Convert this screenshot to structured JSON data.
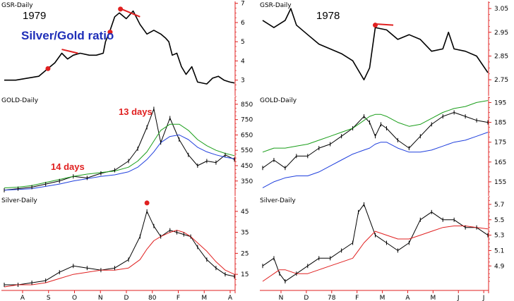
{
  "left": {
    "year_label": "1979",
    "subtitle": "Silver/Gold ratio",
    "annotation_14": "14 days",
    "annotation_13": "13 days",
    "x_ticks": [
      "A",
      "S",
      "O",
      "N",
      "D",
      "80",
      "F",
      "M",
      "A"
    ]
  },
  "right": {
    "year_label": "1978",
    "x_ticks": [
      "N",
      "D",
      "78",
      "F",
      "M",
      "A",
      "M",
      "J",
      "J"
    ]
  },
  "colors": {
    "price": "#000000",
    "short_ma": "#1a9e1a",
    "long_ma": "#1f3fdd",
    "silver_ma": "#e02020",
    "marker": "#e02020",
    "signal": "#1f4fdd",
    "axis": "#e02020"
  },
  "chart_data": [
    {
      "type": "line",
      "title": "GSR-Daily",
      "panel": "left-top",
      "ylim": [
        2.4,
        7.1
      ],
      "y_ticks": [
        3,
        4,
        5,
        6,
        7
      ],
      "x": [
        0,
        10,
        20,
        30,
        38,
        44,
        50,
        55,
        60,
        66,
        74,
        80,
        86,
        88,
        92,
        96,
        100,
        106,
        112,
        118,
        124,
        130,
        136,
        140,
        143,
        146,
        150,
        154,
        158,
        163,
        168,
        176,
        181,
        186,
        191,
        196,
        200
      ],
      "series": [
        {
          "values": [
            3.0,
            3.0,
            3.1,
            3.2,
            3.6,
            3.9,
            4.4,
            4.1,
            4.3,
            4.4,
            4.3,
            4.3,
            4.4,
            5.0,
            5.6,
            6.3,
            6.5,
            6.2,
            6.6,
            5.9,
            5.4,
            5.6,
            5.4,
            5.2,
            5.0,
            4.3,
            4.4,
            3.7,
            3.3,
            3.7,
            2.9,
            2.8,
            3.1,
            3.2,
            3.0,
            2.9,
            2.85
          ]
        }
      ],
      "markers": [
        {
          "x": 38,
          "y": 3.6
        },
        {
          "x": 92,
          "y": 5.5
        },
        {
          "x": 101,
          "y": 6.7
        }
      ],
      "trend_lines": [
        {
          "x": [
            50,
            64
          ],
          "y": [
            4.6,
            4.4
          ]
        },
        {
          "x": [
            102,
            118
          ],
          "y": [
            6.7,
            6.3
          ]
        }
      ]
    },
    {
      "type": "line",
      "title": "GOLD-Daily",
      "panel": "left-middle",
      "ylim": [
        280,
        900
      ],
      "y_ticks": [
        350,
        450,
        550,
        650,
        750,
        850
      ],
      "x": [
        0,
        12,
        24,
        36,
        48,
        60,
        72,
        84,
        96,
        108,
        116,
        124,
        130,
        136,
        144,
        152,
        160,
        168,
        176,
        184,
        192,
        200
      ],
      "series": [
        {
          "values": [
            290,
            300,
            310,
            330,
            350,
            380,
            370,
            400,
            420,
            480,
            560,
            700,
            820,
            600,
            760,
            620,
            520,
            450,
            480,
            470,
            520,
            490
          ]
        },
        {
          "values": [
            305,
            310,
            320,
            340,
            360,
            380,
            395,
            405,
            415,
            440,
            480,
            540,
            610,
            680,
            720,
            720,
            680,
            620,
            580,
            550,
            530,
            515
          ]
        },
        {
          "values": [
            290,
            295,
            300,
            315,
            330,
            350,
            365,
            380,
            390,
            410,
            440,
            490,
            540,
            600,
            640,
            650,
            620,
            570,
            540,
            520,
            505,
            495
          ]
        }
      ]
    },
    {
      "type": "line",
      "title": "Silver-Daily",
      "panel": "left-bottom",
      "ylim": [
        8,
        52
      ],
      "y_ticks": [
        15,
        25,
        35,
        45
      ],
      "x": [
        0,
        12,
        24,
        36,
        48,
        60,
        72,
        84,
        96,
        108,
        118,
        124,
        130,
        136,
        144,
        150,
        156,
        162,
        168,
        176,
        184,
        192,
        200
      ],
      "series": [
        {
          "values": [
            10,
            10,
            11,
            12,
            16,
            19,
            18,
            17,
            18,
            22,
            33,
            45,
            38,
            33,
            36,
            35,
            34,
            33,
            28,
            22,
            18,
            15,
            14
          ]
        },
        {
          "values": [
            9,
            10,
            10,
            11,
            13,
            15,
            16,
            17,
            17,
            18,
            22,
            27,
            31,
            33,
            35,
            36,
            35,
            33,
            30,
            26,
            21,
            17,
            15
          ]
        }
      ],
      "markers": [
        {
          "x": 124,
          "y": 49
        }
      ]
    },
    {
      "type": "line",
      "title": "GSR-Daily",
      "panel": "right-top",
      "ylim": [
        2.7,
        3.08
      ],
      "y_ticks": [
        2.75,
        2.85,
        2.95,
        3.05
      ],
      "x": [
        0,
        10,
        20,
        25,
        30,
        40,
        50,
        60,
        70,
        80,
        90,
        95,
        100,
        110,
        120,
        130,
        140,
        150,
        160,
        165,
        170,
        180,
        190,
        200
      ],
      "series": [
        {
          "values": [
            3.0,
            2.97,
            3.0,
            3.05,
            2.98,
            2.94,
            2.9,
            2.88,
            2.86,
            2.83,
            2.75,
            2.8,
            2.97,
            2.96,
            2.92,
            2.94,
            2.92,
            2.87,
            2.88,
            2.95,
            2.88,
            2.87,
            2.85,
            2.78
          ]
        }
      ],
      "markers": [
        {
          "x": 100,
          "y": 2.98
        }
      ],
      "trend_lines": [
        {
          "x": [
            100,
            116
          ],
          "y": [
            2.985,
            2.98
          ]
        }
      ]
    },
    {
      "type": "line",
      "title": "GOLD-Daily",
      "panel": "right-middle",
      "ylim": [
        150,
        198
      ],
      "y_ticks": [
        155,
        165,
        175,
        185,
        195
      ],
      "x": [
        0,
        10,
        20,
        30,
        40,
        50,
        60,
        70,
        80,
        90,
        95,
        100,
        105,
        110,
        120,
        130,
        140,
        150,
        160,
        170,
        180,
        190,
        200
      ],
      "series": [
        {
          "values": [
            162,
            166,
            162,
            168,
            168,
            172,
            174,
            178,
            182,
            188,
            185,
            178,
            184,
            182,
            176,
            172,
            178,
            184,
            188,
            190,
            188,
            186,
            185
          ]
        },
        {
          "values": [
            170,
            172,
            172,
            173,
            174,
            176,
            178,
            180,
            182,
            186,
            188,
            189,
            189,
            188,
            185,
            183,
            184,
            187,
            190,
            192,
            193,
            195,
            196
          ]
        },
        {
          "values": [
            152,
            155,
            157,
            158,
            158,
            160,
            163,
            166,
            169,
            171,
            172,
            174,
            175,
            175,
            172,
            170,
            170,
            171,
            173,
            175,
            176,
            178,
            180
          ]
        }
      ]
    },
    {
      "type": "line",
      "title": "Silver-Daily",
      "panel": "right-bottom",
      "ylim": [
        4.6,
        5.8
      ],
      "y_ticks": [
        4.9,
        5.1,
        5.3,
        5.5,
        5.7
      ],
      "x": [
        0,
        10,
        15,
        20,
        30,
        40,
        50,
        60,
        70,
        80,
        85,
        90,
        100,
        110,
        120,
        130,
        140,
        150,
        160,
        170,
        180,
        190,
        200
      ],
      "series": [
        {
          "values": [
            4.9,
            5.0,
            4.8,
            4.7,
            4.8,
            4.9,
            5.0,
            5.0,
            5.1,
            5.2,
            5.6,
            5.7,
            5.3,
            5.2,
            5.1,
            5.2,
            5.5,
            5.6,
            5.5,
            5.5,
            5.4,
            5.4,
            5.3
          ]
        },
        {
          "values": [
            4.7,
            4.8,
            4.85,
            4.85,
            4.8,
            4.8,
            4.85,
            4.9,
            4.95,
            5.0,
            5.1,
            5.2,
            5.35,
            5.3,
            5.25,
            5.25,
            5.3,
            5.35,
            5.4,
            5.42,
            5.42,
            5.4,
            5.38
          ]
        }
      ]
    }
  ]
}
